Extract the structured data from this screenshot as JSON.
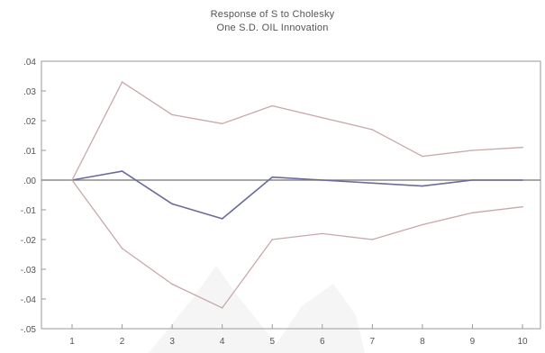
{
  "chart_data": {
    "type": "line",
    "title": "Response of S to Cholesky",
    "subtitle": "One S.D. OIL Innovation",
    "xlabel": "",
    "ylabel": "",
    "x": [
      1,
      2,
      3,
      4,
      5,
      6,
      7,
      8,
      9,
      10
    ],
    "xticks": [
      "1",
      "2",
      "3",
      "4",
      "5",
      "6",
      "7",
      "8",
      "9",
      "10"
    ],
    "yticks": [
      ".04",
      ".03",
      ".02",
      ".01",
      ".00",
      "-.01",
      "-.02",
      "-.03",
      "-.04",
      "-.05"
    ],
    "ylim": [
      -0.05,
      0.04
    ],
    "grid": false,
    "legend": "none",
    "series": [
      {
        "values": [
          0.0,
          0.003,
          -0.008,
          -0.013,
          0.001,
          0.0,
          -0.001,
          -0.002,
          0.0,
          0.0
        ],
        "color": "#6b6b9a",
        "style": "solid"
      },
      {
        "values": [
          0.0,
          0.033,
          0.022,
          0.019,
          0.025,
          0.021,
          0.017,
          0.008,
          0.01,
          0.011
        ],
        "color": "#c8a8a8",
        "style": "solid"
      },
      {
        "values": [
          0.0,
          -0.023,
          -0.035,
          -0.043,
          -0.02,
          -0.018,
          -0.02,
          -0.015,
          -0.011,
          -0.009
        ],
        "color": "#c8a8a8",
        "style": "solid"
      }
    ],
    "zero_line": 0.0
  }
}
